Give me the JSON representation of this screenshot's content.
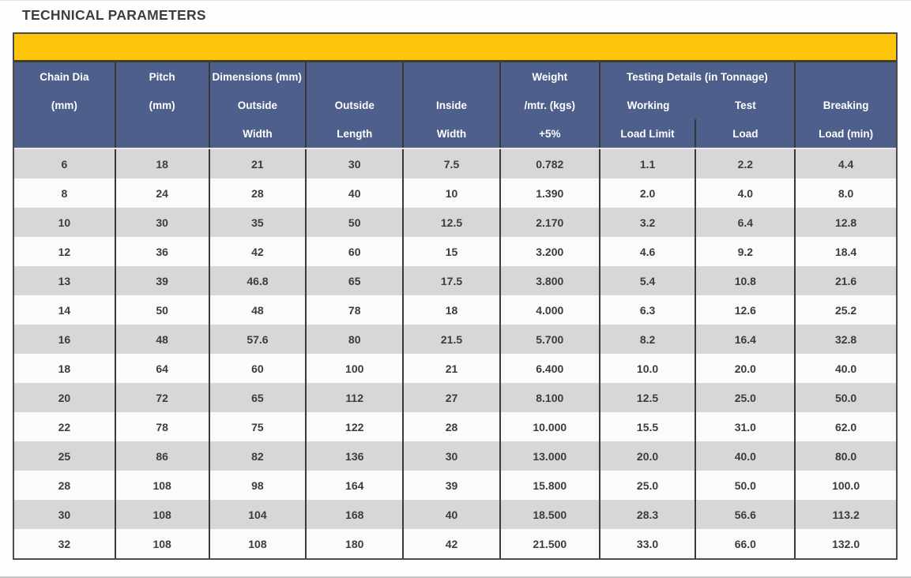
{
  "page": {
    "title": "TECHNICAL PARAMETERS"
  },
  "colors": {
    "banner_yellow": "#fdc60b",
    "header_blue": "#4d5f8a",
    "stripe_gray": "#d7d7d7",
    "stripe_white": "#fbfbfb",
    "grid_line": "#3a3a3a",
    "outer_border": "#4c4c4e"
  },
  "table": {
    "header_rows": [
      [
        "Chain Dia",
        "Pitch",
        "Dimensions (mm)",
        "",
        "",
        "Weight",
        "Testing Details (in Tonnage)",
        ""
      ],
      [
        "(mm)",
        "(mm)",
        "Outside",
        "Outside",
        "Inside",
        "/mtr. (kgs)",
        "Working",
        "Test",
        "Breaking"
      ],
      [
        "",
        "",
        "Width",
        "Length",
        "Width",
        "+5%",
        "Load Limit",
        "Load",
        "Load (min)"
      ]
    ],
    "columns": [
      "Chain Dia (mm)",
      "Pitch (mm)",
      "Outside Width (mm)",
      "Outside Length (mm)",
      "Inside Width (mm)",
      "Weight /mtr. (kgs) +5%",
      "Working Load Limit (tonnage)",
      "Test Load (tonnage)",
      "Breaking Load min (tonnage)"
    ],
    "rows": [
      [
        "6",
        "18",
        "21",
        "30",
        "7.5",
        "0.782",
        "1.1",
        "2.2",
        "4.4"
      ],
      [
        "8",
        "24",
        "28",
        "40",
        "10",
        "1.390",
        "2.0",
        "4.0",
        "8.0"
      ],
      [
        "10",
        "30",
        "35",
        "50",
        "12.5",
        "2.170",
        "3.2",
        "6.4",
        "12.8"
      ],
      [
        "12",
        "36",
        "42",
        "60",
        "15",
        "3.200",
        "4.6",
        "9.2",
        "18.4"
      ],
      [
        "13",
        "39",
        "46.8",
        "65",
        "17.5",
        "3.800",
        "5.4",
        "10.8",
        "21.6"
      ],
      [
        "14",
        "50",
        "48",
        "78",
        "18",
        "4.000",
        "6.3",
        "12.6",
        "25.2"
      ],
      [
        "16",
        "48",
        "57.6",
        "80",
        "21.5",
        "5.700",
        "8.2",
        "16.4",
        "32.8"
      ],
      [
        "18",
        "64",
        "60",
        "100",
        "21",
        "6.400",
        "10.0",
        "20.0",
        "40.0"
      ],
      [
        "20",
        "72",
        "65",
        "112",
        "27",
        "8.100",
        "12.5",
        "25.0",
        "50.0"
      ],
      [
        "22",
        "78",
        "75",
        "122",
        "28",
        "10.000",
        "15.5",
        "31.0",
        "62.0"
      ],
      [
        "25",
        "86",
        "82",
        "136",
        "30",
        "13.000",
        "20.0",
        "40.0",
        "80.0"
      ],
      [
        "28",
        "108",
        "98",
        "164",
        "39",
        "15.800",
        "25.0",
        "50.0",
        "100.0"
      ],
      [
        "30",
        "108",
        "104",
        "168",
        "40",
        "18.500",
        "28.3",
        "56.6",
        "113.2"
      ],
      [
        "32",
        "108",
        "108",
        "180",
        "42",
        "21.500",
        "33.0",
        "66.0",
        "132.0"
      ]
    ]
  }
}
